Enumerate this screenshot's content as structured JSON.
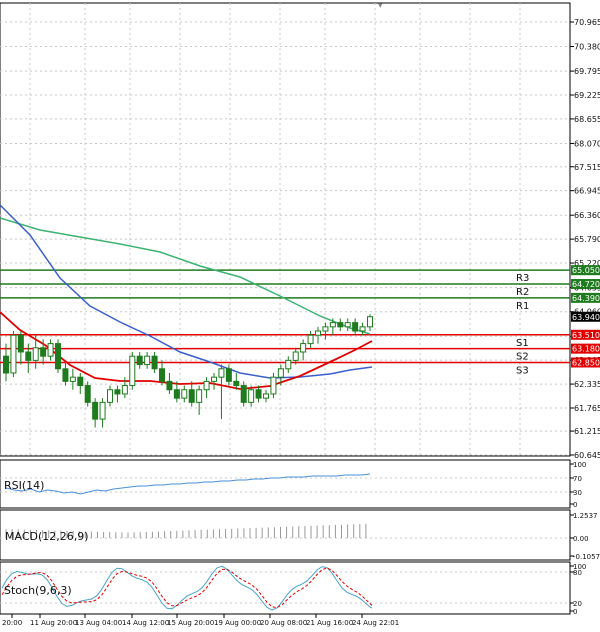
{
  "price_axis": {
    "ticks": [
      "70.965",
      "70.380",
      "69.795",
      "69.225",
      "68.655",
      "68.070",
      "67.515",
      "66.945",
      "66.360",
      "65.790",
      "65.220",
      "64.635",
      "64.060",
      "63.475",
      "62.905",
      "62.335",
      "61.765",
      "61.215",
      "60.645"
    ],
    "current_price": "63.940"
  },
  "levels": [
    {
      "name": "R3",
      "value": "65.050",
      "color": "#1e7b1e"
    },
    {
      "name": "R2",
      "value": "64.720",
      "color": "#1e7b1e"
    },
    {
      "name": "R1",
      "value": "64.390",
      "color": "#1e7b1e"
    },
    {
      "name": "S1",
      "value": "63.510",
      "color": "#e00000"
    },
    {
      "name": "S2",
      "value": "63.180",
      "color": "#e00000"
    },
    {
      "name": "S3",
      "value": "62.850",
      "color": "#e00000"
    }
  ],
  "rsi": {
    "label": "RSI(14)",
    "ticks": [
      "100",
      "70",
      "30",
      "0"
    ]
  },
  "macd": {
    "label": "MACD(12,26,9)",
    "ticks": [
      "1.2537",
      "0.00",
      "-0.1057"
    ]
  },
  "stoch": {
    "label": "Stoch(9,6,3)",
    "ticks": [
      "100",
      "80",
      "20",
      "0"
    ]
  },
  "time_axis": {
    "labels": [
      "20:00",
      "11 Aug 20:00",
      "13 Aug 04:00",
      "14 Aug 12:00",
      "15 Aug 20:00",
      "19 Aug 00:00",
      "20 Aug 08:00",
      "21 Aug 16:00",
      "24 Aug 22:01"
    ]
  },
  "colors": {
    "bull": "#1e7b1e",
    "bear": "#1e7b1e",
    "ma_fast": "#e00000",
    "ma_mid": "#3a5fcd",
    "ma_slow": "#3cb371",
    "grid": "#c8c8c8",
    "rsi_line": "#4a90d9",
    "stoch_main": "#4aa3c8",
    "stoch_signal": "#e00000"
  },
  "chart_data": {
    "type": "candlestick",
    "ylim": [
      60.645,
      71.2
    ],
    "candles": [
      [
        63.0,
        63.3,
        62.4,
        62.6
      ],
      [
        62.6,
        63.6,
        62.5,
        63.5
      ],
      [
        63.5,
        63.6,
        62.8,
        63.1
      ],
      [
        63.1,
        63.3,
        62.6,
        62.9
      ],
      [
        62.9,
        63.5,
        62.7,
        63.2
      ],
      [
        63.2,
        63.4,
        62.8,
        63.0
      ],
      [
        63.0,
        63.4,
        62.9,
        63.3
      ],
      [
        63.3,
        63.4,
        62.6,
        62.7
      ],
      [
        62.7,
        62.9,
        62.3,
        62.4
      ],
      [
        62.4,
        62.7,
        62.2,
        62.5
      ],
      [
        62.5,
        62.6,
        62.1,
        62.3
      ],
      [
        62.3,
        62.4,
        61.8,
        61.9
      ],
      [
        61.9,
        62.0,
        61.3,
        61.5
      ],
      [
        61.5,
        62.0,
        61.3,
        61.9
      ],
      [
        61.9,
        62.3,
        61.8,
        62.2
      ],
      [
        62.2,
        62.3,
        61.9,
        62.1
      ],
      [
        62.1,
        62.5,
        62.0,
        62.3
      ],
      [
        62.3,
        63.1,
        62.2,
        63.0
      ],
      [
        63.0,
        63.1,
        62.7,
        62.8
      ],
      [
        62.8,
        63.1,
        62.7,
        63.0
      ],
      [
        63.0,
        63.1,
        62.6,
        62.7
      ],
      [
        62.7,
        62.9,
        62.3,
        62.4
      ],
      [
        62.4,
        62.6,
        62.1,
        62.2
      ],
      [
        62.2,
        62.4,
        61.9,
        62.0
      ],
      [
        62.0,
        62.3,
        61.9,
        62.2
      ],
      [
        62.2,
        62.4,
        61.8,
        61.9
      ],
      [
        61.9,
        62.3,
        61.6,
        62.2
      ],
      [
        62.2,
        62.5,
        62.0,
        62.4
      ],
      [
        62.4,
        62.6,
        62.2,
        62.5
      ],
      [
        62.5,
        62.8,
        61.5,
        62.7
      ],
      [
        62.7,
        62.8,
        62.3,
        62.4
      ],
      [
        62.4,
        62.6,
        62.2,
        62.3
      ],
      [
        62.3,
        62.4,
        61.8,
        61.9
      ],
      [
        61.9,
        62.3,
        61.8,
        62.2
      ],
      [
        62.2,
        62.3,
        61.9,
        62.0
      ],
      [
        62.0,
        62.2,
        61.9,
        62.1
      ],
      [
        62.1,
        62.6,
        62.0,
        62.5
      ],
      [
        62.5,
        62.8,
        62.3,
        62.7
      ],
      [
        62.7,
        63.0,
        62.6,
        62.9
      ],
      [
        62.9,
        63.2,
        62.8,
        63.1
      ],
      [
        63.1,
        63.4,
        62.9,
        63.3
      ],
      [
        63.3,
        63.6,
        63.2,
        63.5
      ],
      [
        63.5,
        63.7,
        63.3,
        63.6
      ],
      [
        63.6,
        63.8,
        63.4,
        63.7
      ],
      [
        63.7,
        63.9,
        63.5,
        63.8
      ],
      [
        63.8,
        63.9,
        63.6,
        63.7
      ],
      [
        63.7,
        63.9,
        63.6,
        63.8
      ],
      [
        63.8,
        63.9,
        63.5,
        63.6
      ],
      [
        63.6,
        63.8,
        63.5,
        63.7
      ],
      [
        63.7,
        64.0,
        63.6,
        63.94
      ]
    ]
  }
}
